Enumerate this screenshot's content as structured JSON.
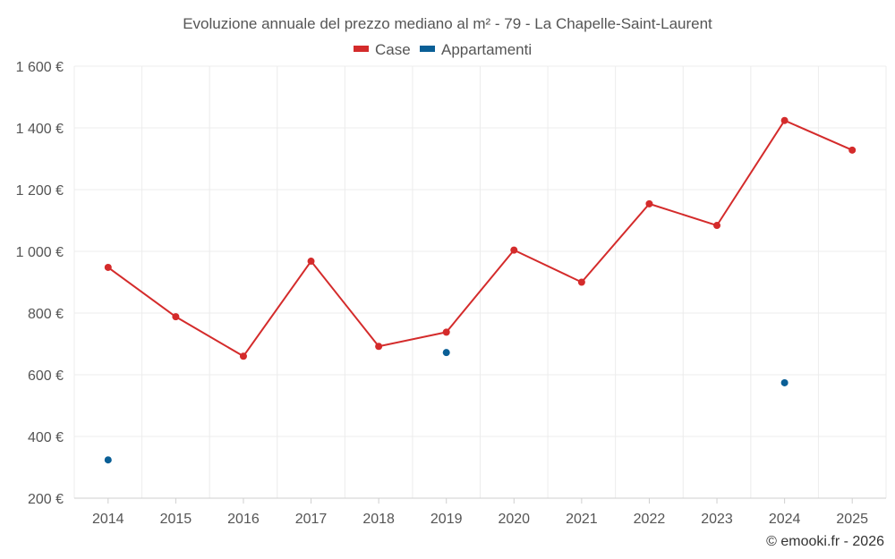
{
  "chart_data": {
    "type": "line",
    "title": "Evoluzione annuale del prezzo mediano al m² - 79 - La Chapelle-Saint-Laurent",
    "categories": [
      "2014",
      "2015",
      "2016",
      "2017",
      "2018",
      "2019",
      "2020",
      "2021",
      "2022",
      "2023",
      "2024",
      "2025"
    ],
    "series": [
      {
        "name": "Case",
        "color": "#d42b2b",
        "mode": "line+markers",
        "values": [
          948,
          788,
          660,
          968,
          692,
          738,
          1004,
          900,
          1154,
          1084,
          1424,
          1328
        ]
      },
      {
        "name": "Appartamenti",
        "color": "#0a5f96",
        "mode": "markers",
        "values": [
          324,
          null,
          null,
          null,
          null,
          672,
          null,
          null,
          null,
          null,
          574,
          null
        ]
      }
    ],
    "ylim": [
      200,
      1600
    ],
    "yticks": [
      200,
      400,
      600,
      800,
      1000,
      1200,
      1400,
      1600
    ],
    "ytick_labels": [
      "200 €",
      "400 €",
      "600 €",
      "800 €",
      "1 000 €",
      "1 200 €",
      "1 400 €",
      "1 600 €"
    ],
    "grid": true,
    "legend_position": "top-center",
    "xlabel": "",
    "ylabel": ""
  },
  "credit": "© emooki.fr - 2026"
}
